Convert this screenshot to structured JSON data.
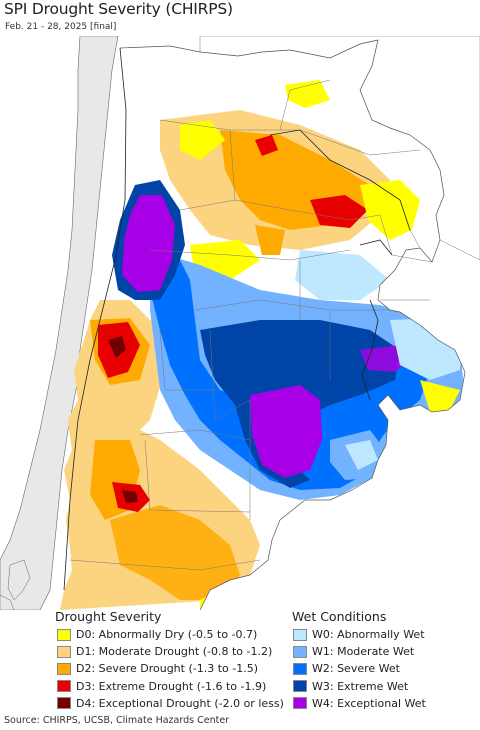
{
  "header": {
    "title": "SPI Drought Severity (CHIRPS)",
    "subtitle": "Feb. 21 - 28, 2025 [final]"
  },
  "legend": {
    "drought": {
      "heading": "Drought Severity",
      "items": [
        {
          "label": "D0: Abnormally Dry (-0.5 to -0.7)",
          "color": "#ffff00"
        },
        {
          "label": "D1: Moderate Drought (-0.8 to -1.2)",
          "color": "#fcd37f"
        },
        {
          "label": "D2: Severe Drought (-1.3 to -1.5)",
          "color": "#ffaa00"
        },
        {
          "label": "D3: Extreme Drought (-1.6 to -1.9)",
          "color": "#e60000"
        },
        {
          "label": "D4: Exceptional Drought (-2.0 or less)",
          "color": "#730000"
        }
      ]
    },
    "wet": {
      "heading": "Wet Conditions",
      "items": [
        {
          "label": "W0: Abnormally Wet",
          "color": "#bee8ff"
        },
        {
          "label": "W1: Moderate Wet",
          "color": "#73b2ff"
        },
        {
          "label": "W2: Severe Wet",
          "color": "#0070ff"
        },
        {
          "label": "W3: Extreme Wet",
          "color": "#0044a8"
        },
        {
          "label": "W4: Exceptional Wet",
          "color": "#a800e6"
        }
      ]
    }
  },
  "footer": {
    "source": "Source: CHIRPS, UCSB, Climate Hazards Center"
  }
}
